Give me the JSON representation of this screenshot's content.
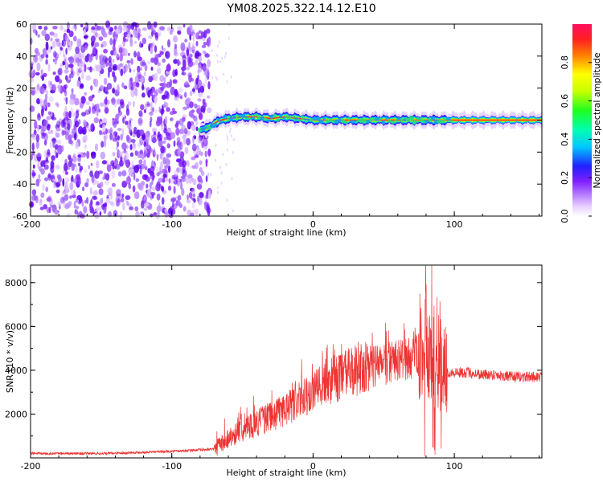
{
  "title": "YM08.2025.322.14.12.E10",
  "chart_data": [
    {
      "type": "heatmap",
      "name": "spectrogram",
      "xlabel": "Height of straight line (km)",
      "ylabel": "Frequency (Hz)",
      "xlim": [
        -200,
        162
      ],
      "ylim": [
        -60,
        60
      ],
      "xticks": [
        -200,
        -100,
        0,
        100
      ],
      "yticks": [
        -60,
        -40,
        -20,
        0,
        20,
        40,
        60
      ],
      "colorbar": {
        "label": "Normalized spectral amplitude",
        "range": [
          0,
          1
        ],
        "ticks": [
          0.0,
          0.2,
          0.4,
          0.6,
          0.8
        ]
      },
      "noise_region_km": [
        -200,
        -73
      ],
      "signal_band": {
        "points_km": [
          -80,
          -75,
          -70,
          -65,
          -60,
          -50,
          -40,
          -30,
          -20,
          -10,
          0,
          20,
          40,
          60,
          80,
          95,
          100,
          130,
          162
        ],
        "freq_hz": [
          -6,
          -5,
          -2,
          0,
          1,
          2,
          2,
          1,
          2,
          1,
          0,
          0,
          0,
          0,
          0,
          0,
          0,
          0,
          0
        ]
      }
    },
    {
      "type": "line",
      "name": "snr",
      "xlabel": "Height of straight line (km)",
      "ylabel": "SNR (10 * v/v)",
      "xlim": [
        -200,
        162
      ],
      "ylim": [
        0,
        8800
      ],
      "xticks": [
        -200,
        -100,
        0,
        100
      ],
      "yticks": [
        2000,
        4000,
        6000,
        8000
      ],
      "series": [
        {
          "name": "SNR",
          "color": "#ee3333",
          "x": [
            -200,
            -150,
            -100,
            -70,
            -60,
            -50,
            -40,
            -30,
            -20,
            -10,
            0,
            10,
            20,
            30,
            40,
            50,
            60,
            70,
            80,
            90,
            95,
            100,
            110,
            120,
            130,
            140,
            150,
            162
          ],
          "y": [
            200,
            200,
            300,
            400,
            900,
            1300,
            1600,
            1900,
            2200,
            2600,
            3000,
            3400,
            3700,
            4000,
            4100,
            4300,
            4400,
            4600,
            4800,
            4200,
            3900,
            3900,
            3900,
            3800,
            3800,
            3700,
            3700,
            3700
          ]
        }
      ],
      "spikes": {
        "x": [
          80,
          84
        ],
        "peak": [
          7600,
          8800
        ]
      }
    }
  ]
}
